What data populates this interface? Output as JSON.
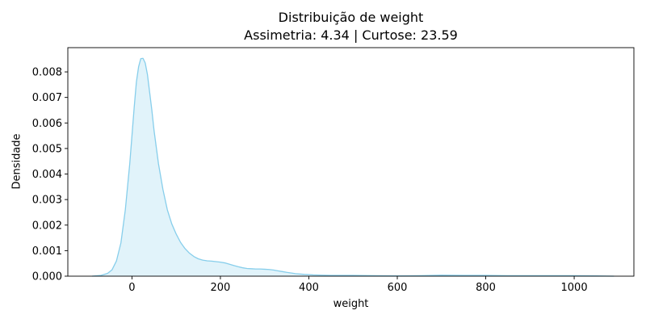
{
  "chart_data": {
    "type": "area",
    "title": "Distribuição de weight",
    "subtitle": "Assimetria: 4.34 | Curtose: 23.59",
    "xlabel": "weight",
    "ylabel": "Densidade",
    "xlim": [
      -145,
      1135
    ],
    "ylim": [
      0,
      0.00895
    ],
    "x_ticks": [
      0,
      200,
      400,
      600,
      800,
      1000
    ],
    "x_tick_labels": [
      "0",
      "200",
      "400",
      "600",
      "800",
      "1000"
    ],
    "y_ticks": [
      0,
      0.001,
      0.002,
      0.003,
      0.004,
      0.005,
      0.006,
      0.007,
      0.008
    ],
    "y_tick_labels": [
      "0.000",
      "0.001",
      "0.002",
      "0.003",
      "0.004",
      "0.005",
      "0.006",
      "0.007",
      "0.008"
    ],
    "grid": false,
    "legend": false,
    "line_color": "#87ceeb",
    "fill_color": "#87ceeb",
    "fill_opacity": 0.25,
    "series": [
      {
        "x": [
          -90,
          -70,
          -55,
          -45,
          -35,
          -25,
          -15,
          -5,
          0,
          5,
          10,
          15,
          20,
          25,
          30,
          35,
          40,
          45,
          50,
          60,
          70,
          80,
          90,
          100,
          110,
          120,
          130,
          140,
          150,
          160,
          170,
          180,
          190,
          200,
          210,
          220,
          230,
          240,
          250,
          260,
          270,
          280,
          290,
          300,
          310,
          320,
          330,
          340,
          350,
          370,
          390,
          410,
          430,
          450,
          500,
          550,
          600,
          650,
          700,
          750,
          800,
          850,
          900,
          950,
          1000,
          1050,
          1090
        ],
        "y": [
          0,
          3e-05,
          0.00011,
          0.00025,
          0.0006,
          0.0013,
          0.0026,
          0.0044,
          0.0055,
          0.0066,
          0.0076,
          0.0082,
          0.00852,
          0.00853,
          0.00835,
          0.0079,
          0.0072,
          0.0065,
          0.0057,
          0.0044,
          0.0034,
          0.0026,
          0.00205,
          0.00165,
          0.00132,
          0.00108,
          0.0009,
          0.00077,
          0.00068,
          0.00063,
          0.0006,
          0.00059,
          0.00057,
          0.00055,
          0.00052,
          0.00047,
          0.00042,
          0.00037,
          0.00033,
          0.0003,
          0.00029,
          0.00028,
          0.00028,
          0.00027,
          0.00026,
          0.00024,
          0.00021,
          0.00018,
          0.00015,
          0.0001,
          7e-05,
          5e-05,
          4e-05,
          3e-05,
          3e-05,
          2e-05,
          1e-05,
          2e-05,
          4e-05,
          3e-05,
          3e-05,
          2e-05,
          2e-05,
          2e-05,
          2e-05,
          1e-05,
          0
        ]
      }
    ]
  }
}
